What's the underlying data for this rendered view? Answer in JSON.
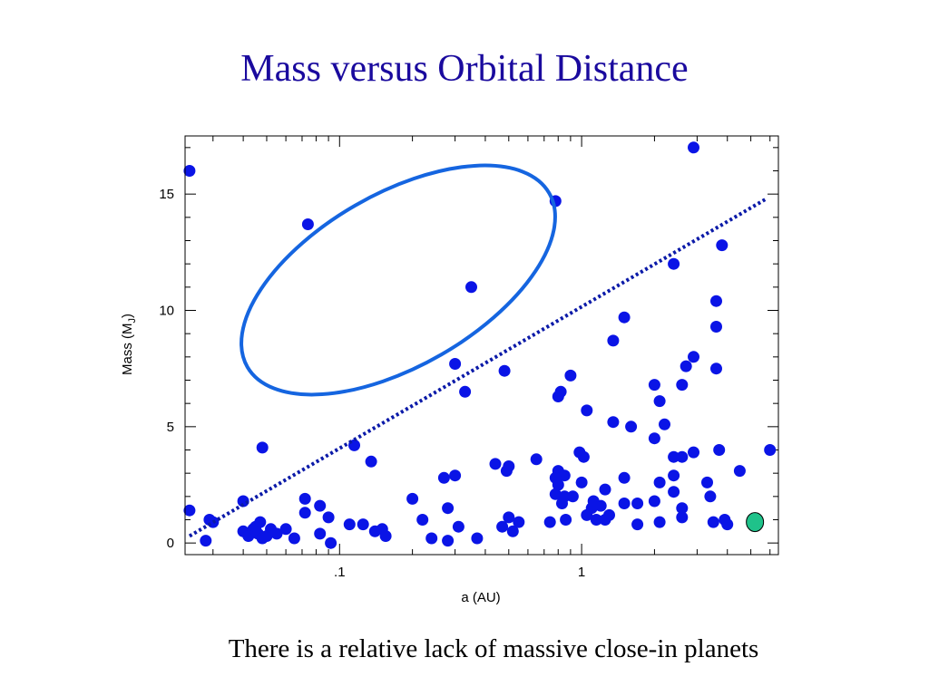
{
  "slide": {
    "title": "Mass versus Orbital Distance",
    "caption": "There is a relative lack of massive close-in planets"
  },
  "colors": {
    "title": "#1a0a9e",
    "points": "#0a14e6",
    "ellipse": "#1565e0",
    "trend_line": "#0b1aa8",
    "jupiter_marker": "#1fc28a"
  },
  "chart_data": {
    "type": "scatter",
    "xlabel": "a (AU)",
    "ylabel_base": "Mass  (M",
    "ylabel_sub": "J",
    "ylabel_close": ")",
    "xscale": "log",
    "xlim": [
      0.023,
      6.5
    ],
    "ylim": [
      -0.5,
      17.5
    ],
    "yticks": [
      0,
      5,
      10,
      15
    ],
    "ytick_labels": [
      "0",
      "5",
      "10",
      "15"
    ],
    "xticks": [
      0.1,
      1
    ],
    "xtick_labels": [
      ".1",
      "1"
    ],
    "grid": false,
    "points": [
      [
        0.024,
        16.0
      ],
      [
        0.074,
        13.7
      ],
      [
        0.78,
        14.7
      ],
      [
        0.35,
        11.0
      ],
      [
        2.9,
        17.0
      ],
      [
        3.8,
        12.8
      ],
      [
        2.4,
        12.0
      ],
      [
        3.6,
        10.4
      ],
      [
        1.5,
        9.7
      ],
      [
        3.6,
        9.3
      ],
      [
        1.35,
        8.7
      ],
      [
        2.9,
        8.0
      ],
      [
        2.7,
        7.6
      ],
      [
        3.6,
        7.5
      ],
      [
        0.3,
        7.7
      ],
      [
        0.48,
        7.4
      ],
      [
        0.9,
        7.2
      ],
      [
        0.8,
        6.3
      ],
      [
        0.82,
        6.5
      ],
      [
        0.33,
        6.5
      ],
      [
        2.6,
        6.8
      ],
      [
        2.0,
        6.8
      ],
      [
        2.1,
        6.1
      ],
      [
        1.05,
        5.7
      ],
      [
        1.35,
        5.2
      ],
      [
        1.6,
        5.0
      ],
      [
        2.2,
        5.1
      ],
      [
        0.048,
        4.1
      ],
      [
        0.115,
        4.2
      ],
      [
        0.135,
        3.5
      ],
      [
        2.0,
        4.5
      ],
      [
        0.98,
        3.9
      ],
      [
        1.02,
        3.7
      ],
      [
        0.65,
        3.6
      ],
      [
        0.44,
        3.4
      ],
      [
        0.5,
        3.3
      ],
      [
        0.49,
        3.1
      ],
      [
        2.4,
        3.7
      ],
      [
        2.6,
        3.7
      ],
      [
        2.9,
        3.9
      ],
      [
        3.7,
        4.0
      ],
      [
        4.5,
        3.1
      ],
      [
        6.0,
        4.0
      ],
      [
        0.8,
        3.1
      ],
      [
        0.85,
        2.9
      ],
      [
        0.78,
        2.8
      ],
      [
        0.27,
        2.8
      ],
      [
        0.3,
        2.9
      ],
      [
        0.8,
        2.5
      ],
      [
        1.0,
        2.6
      ],
      [
        1.25,
        2.3
      ],
      [
        2.1,
        2.6
      ],
      [
        2.4,
        2.9
      ],
      [
        3.3,
        2.6
      ],
      [
        0.78,
        2.1
      ],
      [
        0.85,
        2.0
      ],
      [
        0.92,
        2.0
      ],
      [
        1.5,
        2.8
      ],
      [
        2.4,
        2.2
      ],
      [
        3.4,
        2.0
      ],
      [
        0.2,
        1.9
      ],
      [
        0.072,
        1.9
      ],
      [
        0.04,
        1.8
      ],
      [
        0.024,
        1.4
      ],
      [
        1.12,
        1.8
      ],
      [
        1.1,
        1.5
      ],
      [
        1.2,
        1.6
      ],
      [
        1.3,
        1.2
      ],
      [
        1.5,
        1.7
      ],
      [
        1.7,
        1.7
      ],
      [
        2.0,
        1.8
      ],
      [
        2.6,
        1.5
      ],
      [
        0.83,
        1.7
      ],
      [
        0.083,
        1.6
      ],
      [
        0.28,
        1.5
      ],
      [
        0.072,
        1.3
      ],
      [
        0.029,
        1.0
      ],
      [
        0.03,
        0.9
      ],
      [
        0.04,
        0.5
      ],
      [
        0.042,
        0.3
      ],
      [
        0.044,
        0.6
      ],
      [
        0.046,
        0.4
      ],
      [
        0.048,
        0.2
      ],
      [
        0.05,
        0.3
      ],
      [
        0.052,
        0.6
      ],
      [
        0.055,
        0.4
      ],
      [
        0.06,
        0.6
      ],
      [
        0.065,
        0.2
      ],
      [
        0.09,
        1.1
      ],
      [
        0.092,
        0.0
      ],
      [
        0.083,
        0.4
      ],
      [
        0.11,
        0.8
      ],
      [
        0.125,
        0.8
      ],
      [
        0.14,
        0.5
      ],
      [
        0.15,
        0.6
      ],
      [
        0.155,
        0.3
      ],
      [
        0.22,
        1.0
      ],
      [
        0.24,
        0.2
      ],
      [
        0.28,
        0.1
      ],
      [
        0.31,
        0.7
      ],
      [
        0.37,
        0.2
      ],
      [
        0.47,
        0.7
      ],
      [
        0.5,
        1.1
      ],
      [
        0.52,
        0.5
      ],
      [
        0.55,
        0.9
      ],
      [
        0.74,
        0.9
      ],
      [
        0.86,
        1.0
      ],
      [
        1.05,
        1.2
      ],
      [
        1.15,
        1.0
      ],
      [
        1.25,
        1.0
      ],
      [
        1.7,
        0.8
      ],
      [
        2.1,
        0.9
      ],
      [
        2.6,
        1.1
      ],
      [
        3.5,
        0.9
      ],
      [
        3.9,
        1.0
      ],
      [
        4.0,
        0.8
      ],
      [
        0.028,
        0.1
      ],
      [
        0.045,
        0.7
      ],
      [
        0.047,
        0.9
      ]
    ],
    "annotations": {
      "ellipse_label": "",
      "trend_line": {
        "from": [
          0.024,
          0.3
        ],
        "to": [
          5.8,
          14.8
        ]
      },
      "highlight_point": [
        5.2,
        0.9
      ]
    }
  }
}
